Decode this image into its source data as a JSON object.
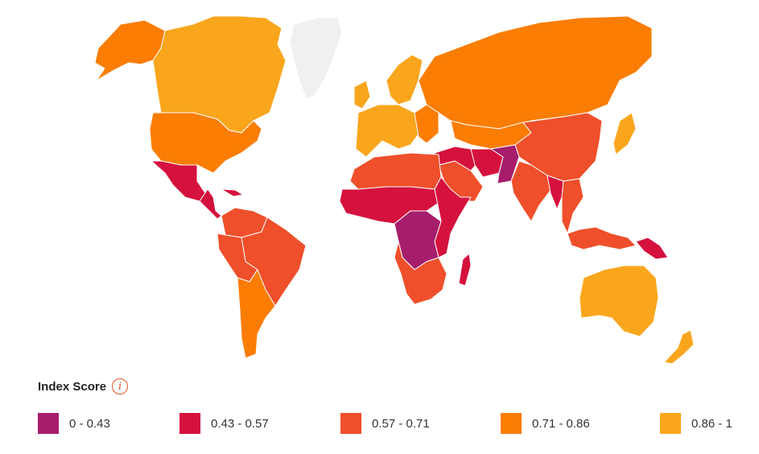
{
  "colors": {
    "no_data": "#f0f0f0",
    "background": "#ffffff",
    "accent": "#e3522a"
  },
  "legend": {
    "title": "Index Score",
    "info_icon": "info-icon",
    "items": [
      {
        "label": "0 - 0.43",
        "color": "#a61d6c"
      },
      {
        "label": "0.43 - 0.57",
        "color": "#d5113d"
      },
      {
        "label": "0.57 - 0.71",
        "color": "#ef4f2b"
      },
      {
        "label": "0.71 - 0.86",
        "color": "#fb7d04"
      },
      {
        "label": "0.86 - 1",
        "color": "#f9a61d"
      }
    ]
  },
  "regions": [
    {
      "name": "alaska-region",
      "color": "#fb7d04"
    },
    {
      "name": "canada-region",
      "color": "#f9a61d"
    },
    {
      "name": "greenland-region",
      "color": "#f0f0f0"
    },
    {
      "name": "usa-region",
      "color": "#fb7d04"
    },
    {
      "name": "mexico-region",
      "color": "#d5113d"
    },
    {
      "name": "central-america-region",
      "color": "#d5113d"
    },
    {
      "name": "cuba-region",
      "color": "#d5113d"
    },
    {
      "name": "colombia-venezuela-region",
      "color": "#ef4f2b"
    },
    {
      "name": "brazil-region",
      "color": "#ef4f2b"
    },
    {
      "name": "peru-bolivia-region",
      "color": "#ef4f2b"
    },
    {
      "name": "southern-cone-region",
      "color": "#fb7d04"
    },
    {
      "name": "western-europe-region",
      "color": "#f9a61d"
    },
    {
      "name": "scandinavia-region",
      "color": "#f9a61d"
    },
    {
      "name": "uk-ireland-region",
      "color": "#f9a61d"
    },
    {
      "name": "eastern-europe-region",
      "color": "#fb7d04"
    },
    {
      "name": "russia-region",
      "color": "#fb7d04"
    },
    {
      "name": "north-africa-region",
      "color": "#ef4f2b"
    },
    {
      "name": "west-central-africa-region",
      "color": "#d5113d"
    },
    {
      "name": "congo-basin-region",
      "color": "#a61d6c"
    },
    {
      "name": "east-africa-region",
      "color": "#d5113d"
    },
    {
      "name": "southern-africa-region",
      "color": "#ef4f2b"
    },
    {
      "name": "madagascar-region",
      "color": "#d5113d"
    },
    {
      "name": "arabian-peninsula-region",
      "color": "#ef4f2b"
    },
    {
      "name": "saudi-region",
      "color": "#d5113d"
    },
    {
      "name": "iran-region",
      "color": "#d5113d"
    },
    {
      "name": "afghanistan-pakistan-region",
      "color": "#a61d6c"
    },
    {
      "name": "central-asia-region",
      "color": "#fb7d04"
    },
    {
      "name": "china-region",
      "color": "#ef4f2b"
    },
    {
      "name": "india-region",
      "color": "#ef4f2b"
    },
    {
      "name": "myanmar-region",
      "color": "#d5113d"
    },
    {
      "name": "southeast-asia-region",
      "color": "#ef4f2b"
    },
    {
      "name": "japan-region",
      "color": "#f9a61d"
    },
    {
      "name": "indonesia-region",
      "color": "#ef4f2b"
    },
    {
      "name": "papua-new-guinea-region",
      "color": "#d5113d"
    },
    {
      "name": "australia-region",
      "color": "#f9a61d"
    },
    {
      "name": "new-zealand-region",
      "color": "#f9a61d"
    }
  ]
}
